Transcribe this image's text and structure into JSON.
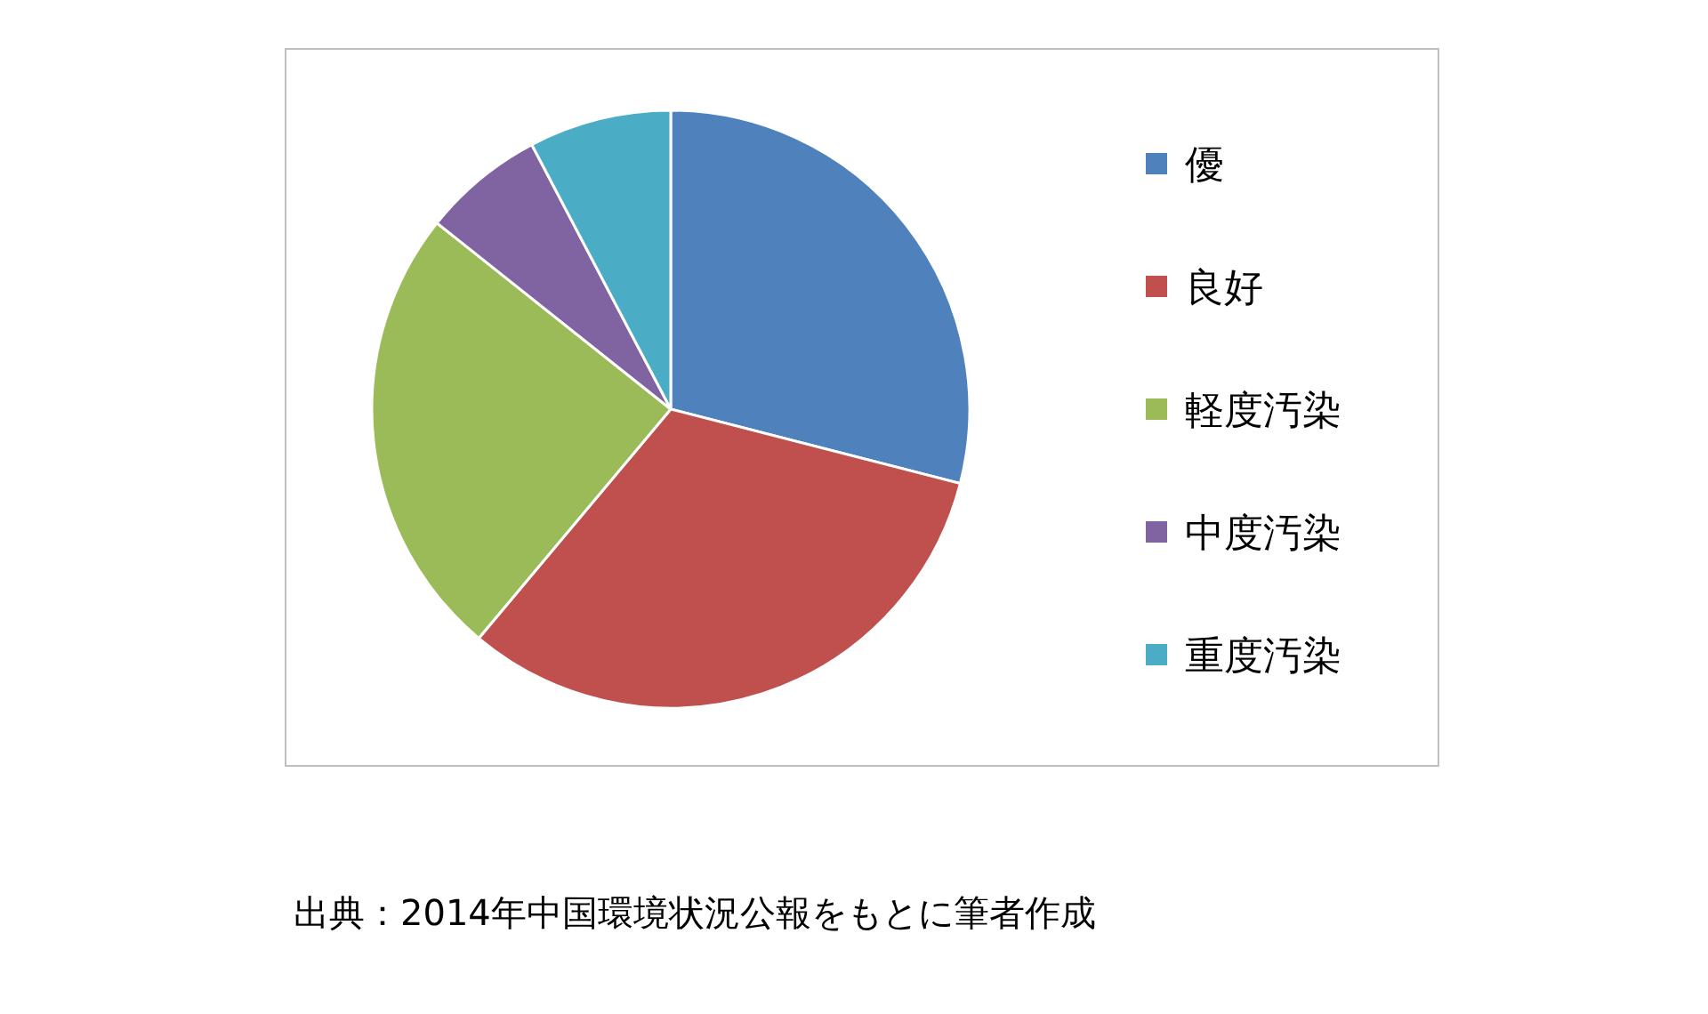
{
  "chart_data": {
    "type": "pie",
    "categories": [
      "優",
      "良好",
      "軽度汚染",
      "中度汚染",
      "重度汚染"
    ],
    "values": [
      29.0,
      32.1,
      24.6,
      6.6,
      7.7
    ],
    "colors": [
      "#4f81bd",
      "#c0504d",
      "#9bbb59",
      "#8064a2",
      "#4bacc6"
    ],
    "legend": "right",
    "annotations": [
      "出典：2014年中国環境状況公報をもとに筆者作成"
    ]
  }
}
